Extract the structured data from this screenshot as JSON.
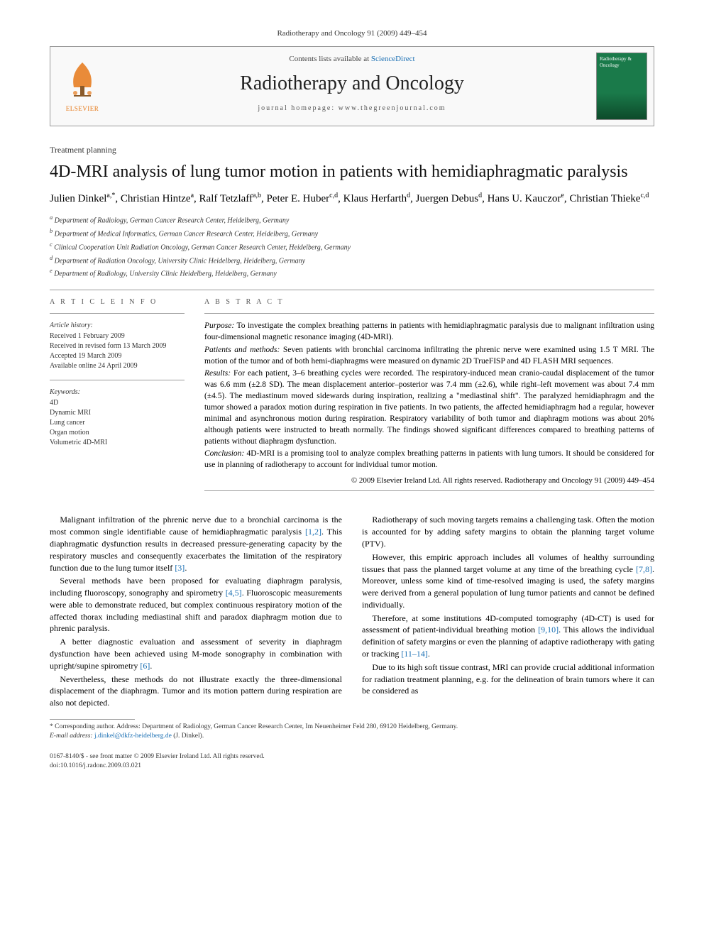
{
  "running_head": "Radiotherapy and Oncology 91 (2009) 449–454",
  "header": {
    "contents_prefix": "Contents lists available at ",
    "contents_link": "ScienceDirect",
    "journal_name": "Radiotherapy and Oncology",
    "homepage_label": "journal homepage: www.thegreenjournal.com",
    "publisher_label": "ELSEVIER",
    "cover_text": "Radiotherapy & Oncology"
  },
  "section_label": "Treatment planning",
  "title": "4D-MRI analysis of lung tumor motion in patients with hemidiaphragmatic paralysis",
  "authors_html": "Julien Dinkel",
  "authors": [
    {
      "name": "Julien Dinkel",
      "marks": "a,*"
    },
    {
      "name": "Christian Hintze",
      "marks": "a"
    },
    {
      "name": "Ralf Tetzlaff",
      "marks": "a,b"
    },
    {
      "name": "Peter E. Huber",
      "marks": "c,d"
    },
    {
      "name": "Klaus Herfarth",
      "marks": "d"
    },
    {
      "name": "Juergen Debus",
      "marks": "d"
    },
    {
      "name": "Hans U. Kauczor",
      "marks": "e"
    },
    {
      "name": "Christian Thieke",
      "marks": "c,d"
    }
  ],
  "affiliations": [
    {
      "mark": "a",
      "text": "Department of Radiology, German Cancer Research Center, Heidelberg, Germany"
    },
    {
      "mark": "b",
      "text": "Department of Medical Informatics, German Cancer Research Center, Heidelberg, Germany"
    },
    {
      "mark": "c",
      "text": "Clinical Cooperation Unit Radiation Oncology, German Cancer Research Center, Heidelberg, Germany"
    },
    {
      "mark": "d",
      "text": "Department of Radiation Oncology, University Clinic Heidelberg, Heidelberg, Germany"
    },
    {
      "mark": "e",
      "text": "Department of Radiology, University Clinic Heidelberg, Heidelberg, Germany"
    }
  ],
  "info": {
    "heading": "A R T I C L E   I N F O",
    "history_label": "Article history:",
    "history": [
      "Received 1 February 2009",
      "Received in revised form 13 March 2009",
      "Accepted 19 March 2009",
      "Available online 24 April 2009"
    ],
    "keywords_label": "Keywords:",
    "keywords": [
      "4D",
      "Dynamic MRI",
      "Lung cancer",
      "Organ motion",
      "Volumetric 4D-MRI"
    ]
  },
  "abstract": {
    "heading": "A B S T R A C T",
    "purpose_label": "Purpose:",
    "purpose": " To investigate the complex breathing patterns in patients with hemidiaphragmatic paralysis due to malignant infiltration using four-dimensional magnetic resonance imaging (4D-MRI).",
    "methods_label": "Patients and methods:",
    "methods": " Seven patients with bronchial carcinoma infiltrating the phrenic nerve were examined using 1.5 T MRI. The motion of the tumor and of both hemi-diaphragms were measured on dynamic 2D TrueFISP and 4D FLASH MRI sequences.",
    "results_label": "Results:",
    "results": " For each patient, 3–6 breathing cycles were recorded. The respiratory-induced mean cranio-caudal displacement of the tumor was 6.6 mm (±2.8 SD). The mean displacement anterior–posterior was 7.4 mm (±2.6), while right–left movement was about 7.4 mm (±4.5). The mediastinum moved sidewards during inspiration, realizing a \"mediastinal shift\". The paralyzed hemidiaphragm and the tumor showed a paradox motion during respiration in five patients. In two patients, the affected hemidiaphragm had a regular, however minimal and asynchronous motion during respiration. Respiratory variability of both tumor and diaphragm motions was about 20% although patients were instructed to breath normally. The findings showed significant differences compared to breathing patterns of patients without diaphragm dysfunction.",
    "conclusion_label": "Conclusion:",
    "conclusion": " 4D-MRI is a promising tool to analyze complex breathing patterns in patients with lung tumors. It should be considered for use in planning of radiotherapy to account for individual tumor motion.",
    "copyright": "© 2009 Elsevier Ireland Ltd. All rights reserved. Radiotherapy and Oncology 91 (2009) 449–454"
  },
  "body": {
    "p1a": "Malignant infiltration of the phrenic nerve due to a bronchial carcinoma is the most common single identifiable cause of hemidiaphragmatic paralysis ",
    "p1_ref1": "[1,2]",
    "p1b": ". This diaphragmatic dysfunction results in decreased pressure-generating capacity by the respiratory muscles and consequently exacerbates the limitation of the respiratory function due to the lung tumor itself ",
    "p1_ref2": "[3]",
    "p1c": ".",
    "p2a": "Several methods have been proposed for evaluating diaphragm paralysis, including fluoroscopy, sonography and spirometry ",
    "p2_ref1": "[4,5]",
    "p2b": ". Fluoroscopic measurements were able to demonstrate reduced, but complex continuous respiratory motion of the affected thorax including mediastinal shift and paradox diaphragm motion due to phrenic paralysis.",
    "p3a": "A better diagnostic evaluation and assessment of severity in diaphragm dysfunction have been achieved using M-mode sonography in combination with upright/supine spirometry ",
    "p3_ref1": "[6]",
    "p3b": ".",
    "p4": "Nevertheless, these methods do not illustrate exactly the three-dimensional displacement of the diaphragm. Tumor and its motion pattern during respiration are also not depicted.",
    "p5": "Radiotherapy of such moving targets remains a challenging task. Often the motion is accounted for by adding safety margins to obtain the planning target volume (PTV).",
    "p6a": "However, this empiric approach includes all volumes of healthy surrounding tissues that pass the planned target volume at any time of the breathing cycle ",
    "p6_ref1": "[7,8]",
    "p6b": ". Moreover, unless some kind of time-resolved imaging is used, the safety margins were derived from a general population of lung tumor patients and cannot be defined individually.",
    "p7a": "Therefore, at some institutions 4D-computed tomography (4D-CT) is used for assessment of patient-individual breathing motion ",
    "p7_ref1": "[9,10]",
    "p7b": ". This allows the individual definition of safety margins or even the planning of adaptive radiotherapy with gating or tracking ",
    "p7_ref2": "[11–14]",
    "p7c": ".",
    "p8": "Due to its high soft tissue contrast, MRI can provide crucial additional information for radiation treatment planning, e.g. for the delineation of brain tumors where it can be considered as"
  },
  "footnote": {
    "corr_label": "* Corresponding author. Address: Department of Radiology, German Cancer Research Center, Im Neuenheimer Feld 280, 69120 Heidelberg, Germany.",
    "email_label": "E-mail address:",
    "email": "j.dinkel@dkfz-heidelberg.de",
    "email_suffix": " (J. Dinkel)."
  },
  "footer": {
    "line1": "0167-8140/$ - see front matter © 2009 Elsevier Ireland Ltd. All rights reserved.",
    "line2": "doi:10.1016/j.radonc.2009.03.021"
  },
  "colors": {
    "link": "#1a6fb3",
    "elsevier_orange": "#e67817",
    "cover_green": "#1a7a4a"
  }
}
